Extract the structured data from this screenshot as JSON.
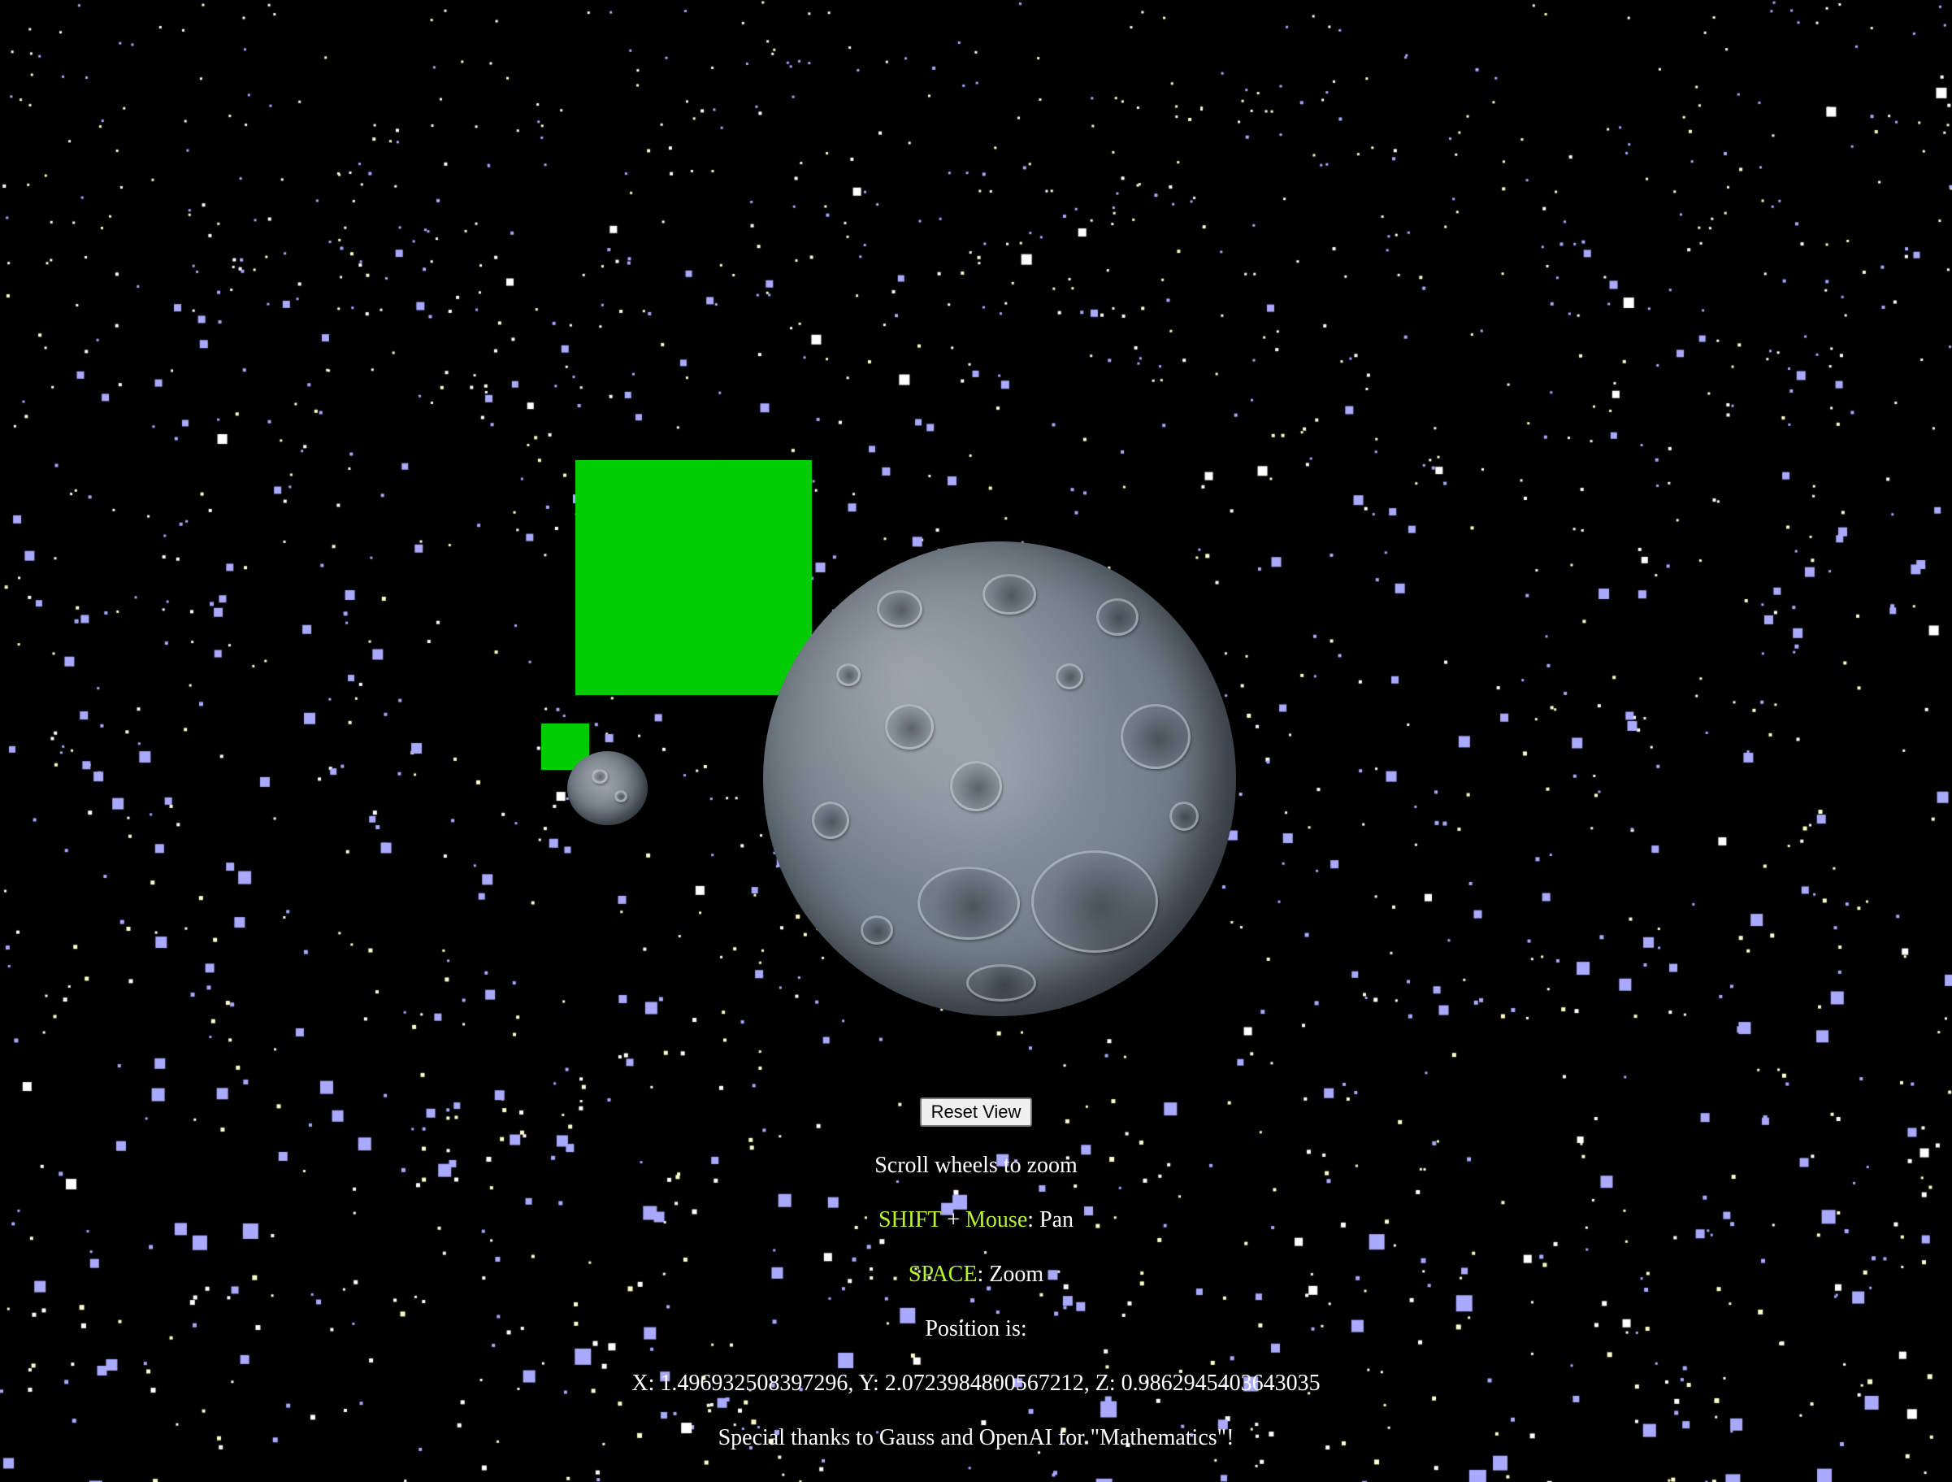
{
  "colors": {
    "background": "#000000",
    "green_squares": "#00cc00",
    "key_highlight": "#b8f52e",
    "star_white": "#ffffff",
    "star_yellow": "#ffffcc",
    "star_violet": "#a9a9ff"
  },
  "scene": {
    "objects": [
      "green-square",
      "green-square",
      "moon",
      "moon",
      "starfield"
    ]
  },
  "controls": {
    "reset_label": "Reset View"
  },
  "instructions": {
    "zoom_line": "Scroll wheels to zoom",
    "pan_key_shift": "SHIFT",
    "pan_plus": " + ",
    "pan_key_mouse": "Mouse",
    "pan_action": ": Pan",
    "zoom_key": "SPACE",
    "zoom_action": ": Zoom"
  },
  "position": {
    "label": "Position is:",
    "readout": "X: 1.496932508397296, Y: 2.0723984800567212, Z: 0.9862945403643035"
  },
  "credits": {
    "text": "Special thanks to Gauss and OpenAI for \"Mathematics\"!"
  }
}
